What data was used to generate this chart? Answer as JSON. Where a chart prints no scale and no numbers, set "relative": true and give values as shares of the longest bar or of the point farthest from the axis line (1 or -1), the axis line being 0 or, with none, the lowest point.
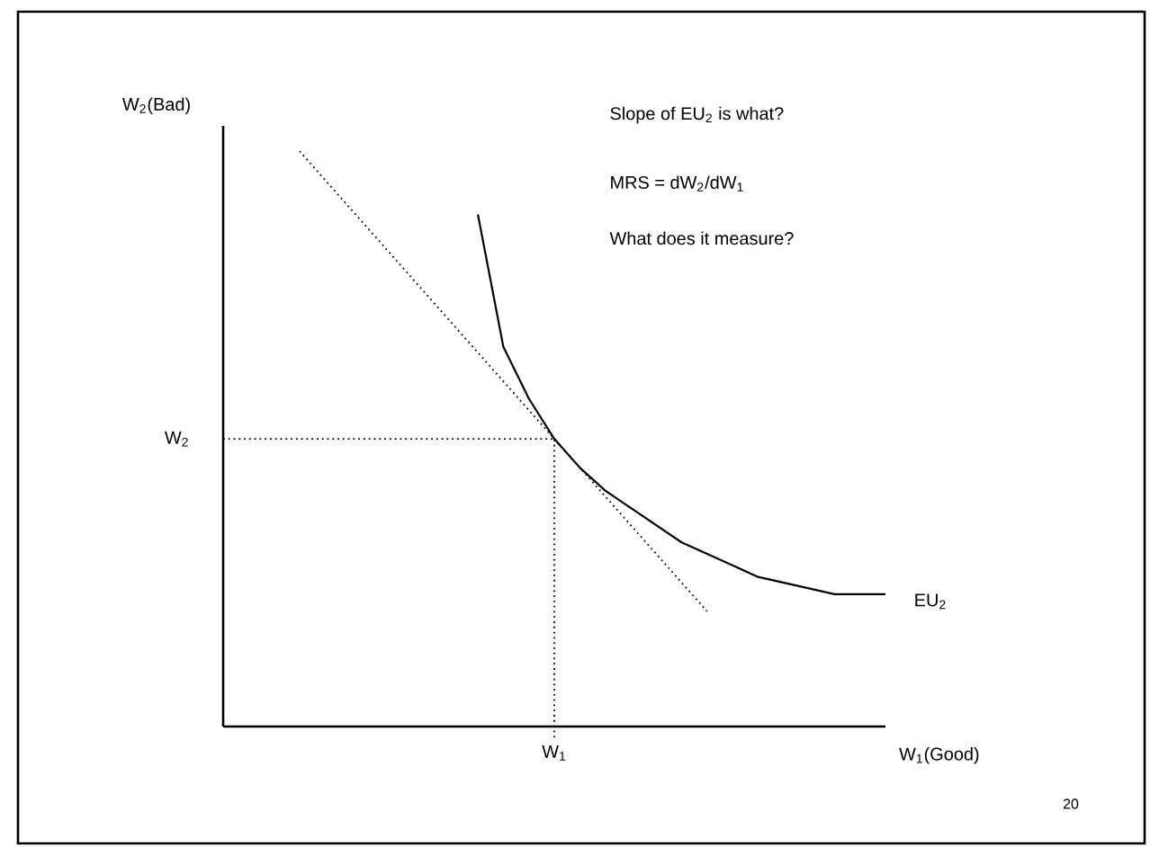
{
  "chart_data": {
    "type": "line",
    "relative": true,
    "xlabel": "W$_{1}$(Good)",
    "ylabel": "W$_{2}$(Bad)",
    "annotations": [
      "Slope of EU$_{2}$ is what?",
      "MRS = dW$_{2}$/dW$_{1}$",
      "What does it measure?",
      "20",
      "W$_{1}$"
    ],
    "categories": [
      null,
      null,
      null,
      null,
      null,
      null,
      null,
      null,
      null,
      null,
      null,
      null,
      null,
      null,
      null,
      null,
      null,
      null,
      null,
      null,
      null,
      null,
      null,
      null,
      null,
      null,
      null
    ],
    "ref_lines": [
      {
        "axis": "y",
        "value": 0.5,
        "label": "W$_{2}$",
        "line_style": "dotted"
      }
    ],
    "series": [
      {
        "name": "EU$_{2}$",
        "color": "#000000",
        "line_style": "solid",
        "values": [
          null,
          null,
          null,
          null,
          null,
          null,
          null,
          null,
          null,
          null,
          0.89,
          0.66,
          0.57,
          0.5,
          0.45,
          0.41,
          0.38,
          0.35,
          0.32,
          0.3,
          0.28,
          0.26,
          0.25,
          0.24,
          0.23,
          0.23,
          0.23
        ]
      },
      {
        "color": "#000000",
        "line_style": "dotted",
        "values": [
          null,
          null,
          null,
          1,
          0.95,
          0.9,
          0.85,
          0.8,
          0.75,
          0.7,
          0.65,
          0.6,
          0.55,
          0.5,
          0.45,
          0.4,
          0.35,
          0.3,
          0.25,
          0.2,
          null,
          null,
          null,
          null,
          null,
          null,
          null
        ]
      }
    ]
  }
}
